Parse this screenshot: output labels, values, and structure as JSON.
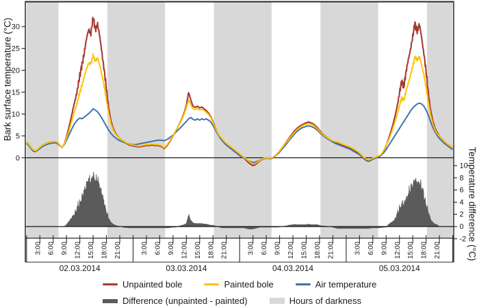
{
  "figure": {
    "left_axis_title": "Bark surface temperature (°C)",
    "right_axis_title": "Temperature difference (°C)",
    "legend": {
      "unpainted": "Unpainted bole",
      "painted": "Painted bole",
      "air": "Air temperature",
      "difference": "Difference (unpainted - painted)",
      "darkness": "Hours of darkness"
    },
    "colors": {
      "unpainted": "#a63a32",
      "painted": "#ffc103",
      "air": "#3f72ab",
      "difference_fill": "#5b5b5b",
      "darkness": "#d8d8d8",
      "axis": "#2a2a2a",
      "text": "#1a1a1a"
    }
  },
  "chart_data": {
    "type": "line",
    "title": "",
    "x_unit": "hours since 02.03.2014 00:00",
    "x_start": 0,
    "x_end": 96,
    "x_step": 0.5,
    "dates": [
      "02.03.2014",
      "03.03.2014",
      "04.03.2014",
      "05.03.2014"
    ],
    "time_tick_labels": [
      "3:00",
      "6:00",
      "9:00",
      "12:00",
      "15:00",
      "18:00",
      "21:00"
    ],
    "top_axis": {
      "label": "Bark surface temperature (°C)",
      "ticks": [
        0,
        5,
        10,
        15,
        20,
        25,
        30
      ],
      "ylim": [
        -2.5,
        35.5
      ]
    },
    "bottom_axis": {
      "label": "Temperature difference (°C)",
      "ticks": [
        -2,
        0,
        2,
        4,
        6,
        8,
        10
      ],
      "ylim": [
        -2,
        11.1
      ]
    },
    "darkness_intervals_hours": [
      [
        0,
        7.2
      ],
      [
        18.2,
        31.2
      ],
      [
        42.2,
        55.2
      ],
      [
        66.2,
        79.2
      ],
      [
        90.2,
        96
      ]
    ],
    "difference_definition": "unpainted minus painted",
    "spike_texture": {
      "enabled": true,
      "gate_min_diff": 0.7,
      "gate_full_diff": 2.9,
      "amp_unpainted": 1.0,
      "amp_painted": 0.5,
      "amp_difference": 1.35
    },
    "series": [
      {
        "name": "Unpainted bole",
        "color_key": "unpainted",
        "values": [
          3.6,
          3.1,
          2.4,
          1.8,
          1.6,
          1.9,
          2.4,
          2.8,
          3.1,
          3.3,
          3.5,
          3.6,
          3.7,
          3.7,
          3.5,
          2.8,
          2.3,
          3.2,
          4.8,
          6.8,
          9.0,
          11.2,
          13.5,
          16.0,
          18.5,
          21.5,
          24.0,
          27.0,
          29.5,
          28.5,
          31.8,
          29.5,
          30.5,
          27.5,
          24.0,
          20.0,
          15.5,
          11.5,
          8.5,
          6.8,
          5.7,
          5.0,
          4.4,
          4.0,
          3.6,
          3.3,
          3.0,
          2.8,
          2.7,
          2.6,
          2.5,
          2.5,
          2.6,
          2.7,
          2.8,
          2.8,
          2.9,
          2.9,
          2.8,
          2.8,
          2.7,
          2.5,
          2.1,
          2.6,
          3.3,
          4.1,
          5.0,
          5.9,
          6.9,
          7.9,
          9.0,
          10.3,
          12.0,
          15.0,
          13.2,
          11.8,
          11.5,
          11.8,
          11.4,
          11.6,
          11.2,
          10.8,
          10.2,
          9.4,
          8.3,
          7.0,
          5.8,
          4.9,
          4.2,
          3.6,
          3.1,
          2.7,
          2.3,
          1.9,
          1.5,
          1.1,
          0.7,
          0.3,
          -0.1,
          -0.6,
          -1.1,
          -1.5,
          -1.8,
          -1.6,
          -1.2,
          -0.8,
          -0.4,
          -0.2,
          -0.1,
          -0.1,
          -0.2,
          0.0,
          0.4,
          0.9,
          1.5,
          2.2,
          2.9,
          3.6,
          4.3,
          5.0,
          5.7,
          6.3,
          6.8,
          7.2,
          7.5,
          7.8,
          8.0,
          8.2,
          8.0,
          7.8,
          7.4,
          6.9,
          6.3,
          5.7,
          5.2,
          4.8,
          4.4,
          4.1,
          3.8,
          3.5,
          3.3,
          3.1,
          2.9,
          2.7,
          2.5,
          2.3,
          2.1,
          1.8,
          1.5,
          1.2,
          0.8,
          0.3,
          -0.2,
          -0.6,
          -0.8,
          -0.6,
          -0.3,
          -0.1,
          0.1,
          0.3,
          0.8,
          1.6,
          2.8,
          4.2,
          5.8,
          7.5,
          9.5,
          12.0,
          14.5,
          17.5,
          16.5,
          19.5,
          22.5,
          25.0,
          27.5,
          30.8,
          29.0,
          30.3,
          27.5,
          24.0,
          19.5,
          15.0,
          11.0,
          8.5,
          6.8,
          5.8,
          5.0,
          4.4,
          3.9,
          3.4,
          3.0,
          2.6,
          2.3
        ]
      },
      {
        "name": "Painted bole",
        "color_key": "painted",
        "values": [
          3.6,
          3.1,
          2.4,
          1.8,
          1.6,
          1.9,
          2.4,
          2.8,
          3.1,
          3.3,
          3.5,
          3.6,
          3.7,
          3.7,
          3.5,
          2.8,
          2.3,
          3.2,
          4.5,
          6.0,
          7.8,
          9.5,
          11.3,
          13.0,
          14.8,
          16.8,
          18.5,
          20.2,
          21.8,
          21.5,
          23.3,
          22.3,
          22.8,
          21.0,
          19.0,
          16.3,
          13.2,
          10.2,
          7.8,
          6.4,
          5.5,
          4.9,
          4.4,
          4.0,
          3.75,
          3.45,
          3.2,
          3.0,
          2.9,
          2.8,
          2.7,
          2.7,
          2.8,
          2.9,
          3.0,
          3.0,
          3.1,
          3.1,
          3.0,
          3.0,
          2.9,
          2.7,
          2.3,
          2.8,
          3.5,
          4.25,
          5.1,
          6.0,
          6.9,
          7.8,
          8.8,
          10.0,
          11.5,
          13.2,
          12.2,
          11.2,
          11.0,
          11.3,
          10.9,
          11.1,
          10.8,
          10.4,
          9.9,
          9.2,
          8.1,
          6.9,
          5.8,
          5.0,
          4.4,
          3.8,
          3.3,
          2.9,
          2.5,
          2.1,
          1.7,
          1.3,
          0.9,
          0.5,
          0.1,
          -0.3,
          -0.7,
          -1.1,
          -1.4,
          -1.3,
          -1.0,
          -0.7,
          -0.3,
          -0.1,
          0.0,
          0.0,
          -0.1,
          0.1,
          0.5,
          1.0,
          1.55,
          2.2,
          2.85,
          3.5,
          4.1,
          4.75,
          5.4,
          5.95,
          6.5,
          6.9,
          7.2,
          7.5,
          7.7,
          7.8,
          7.7,
          7.5,
          7.1,
          6.6,
          6.1,
          5.6,
          5.1,
          4.75,
          4.4,
          4.1,
          3.9,
          3.7,
          3.6,
          3.4,
          3.2,
          3.0,
          2.8,
          2.6,
          2.4,
          2.1,
          1.8,
          1.5,
          1.1,
          0.6,
          0.1,
          -0.3,
          -0.5,
          -0.35,
          -0.1,
          0.1,
          0.3,
          0.5,
          0.95,
          1.7,
          2.9,
          3.9,
          5.2,
          6.7,
          8.3,
          10.0,
          11.8,
          13.8,
          13.2,
          15.2,
          17.2,
          19.0,
          20.8,
          23.3,
          22.3,
          23.0,
          21.3,
          19.0,
          16.0,
          12.8,
          9.8,
          7.8,
          6.4,
          5.5,
          5.0,
          4.4,
          3.9,
          3.4,
          3.0,
          2.6,
          2.3
        ]
      },
      {
        "name": "Air temperature",
        "color_key": "air",
        "values": [
          3.3,
          2.8,
          2.1,
          1.5,
          1.4,
          1.7,
          2.1,
          2.5,
          2.8,
          3.0,
          3.2,
          3.3,
          3.4,
          3.4,
          3.2,
          2.7,
          2.4,
          3.0,
          4.0,
          5.1,
          6.2,
          7.2,
          8.1,
          8.7,
          9.1,
          8.9,
          9.3,
          9.7,
          10.1,
          10.6,
          11.2,
          10.9,
          10.5,
          9.8,
          9.0,
          8.1,
          7.2,
          6.3,
          5.6,
          5.0,
          4.6,
          4.2,
          3.9,
          3.7,
          3.5,
          3.3,
          3.2,
          3.1,
          3.0,
          3.0,
          3.1,
          3.2,
          3.3,
          3.4,
          3.5,
          3.6,
          3.7,
          3.8,
          3.9,
          4.0,
          4.0,
          4.0,
          3.9,
          4.1,
          4.4,
          4.8,
          5.2,
          5.7,
          6.2,
          6.7,
          7.2,
          7.8,
          8.3,
          8.9,
          9.2,
          8.8,
          8.6,
          8.9,
          8.6,
          8.9,
          8.7,
          8.9,
          8.6,
          8.2,
          7.4,
          6.4,
          5.5,
          4.7,
          4.0,
          3.4,
          2.9,
          2.5,
          2.1,
          1.7,
          1.3,
          0.9,
          0.5,
          0.2,
          -0.1,
          -0.4,
          -0.7,
          -0.9,
          -1.1,
          -1.0,
          -0.8,
          -0.6,
          -0.3,
          -0.2,
          -0.1,
          -0.1,
          -0.1,
          0.1,
          0.4,
          0.8,
          1.3,
          1.9,
          2.5,
          3.1,
          3.8,
          4.4,
          5.0,
          5.6,
          6.1,
          6.5,
          6.8,
          7.0,
          7.2,
          7.3,
          7.2,
          7.0,
          6.7,
          6.3,
          5.8,
          5.3,
          4.9,
          4.5,
          4.2,
          3.9,
          3.6,
          3.3,
          3.1,
          2.9,
          2.7,
          2.5,
          2.3,
          2.1,
          1.9,
          1.6,
          1.3,
          1.0,
          0.7,
          0.3,
          -0.1,
          -0.4,
          -0.6,
          -0.5,
          -0.3,
          -0.1,
          0.1,
          0.3,
          0.7,
          1.2,
          1.9,
          2.7,
          3.5,
          4.3,
          5.1,
          5.9,
          6.7,
          7.5,
          8.3,
          9.1,
          9.9,
          10.7,
          11.4,
          11.9,
          12.3,
          12.5,
          12.3,
          11.8,
          10.9,
          9.7,
          8.3,
          7.0,
          5.9,
          5.1,
          4.4,
          3.9,
          3.4,
          3.0,
          2.6,
          2.2,
          1.9
        ]
      }
    ]
  }
}
